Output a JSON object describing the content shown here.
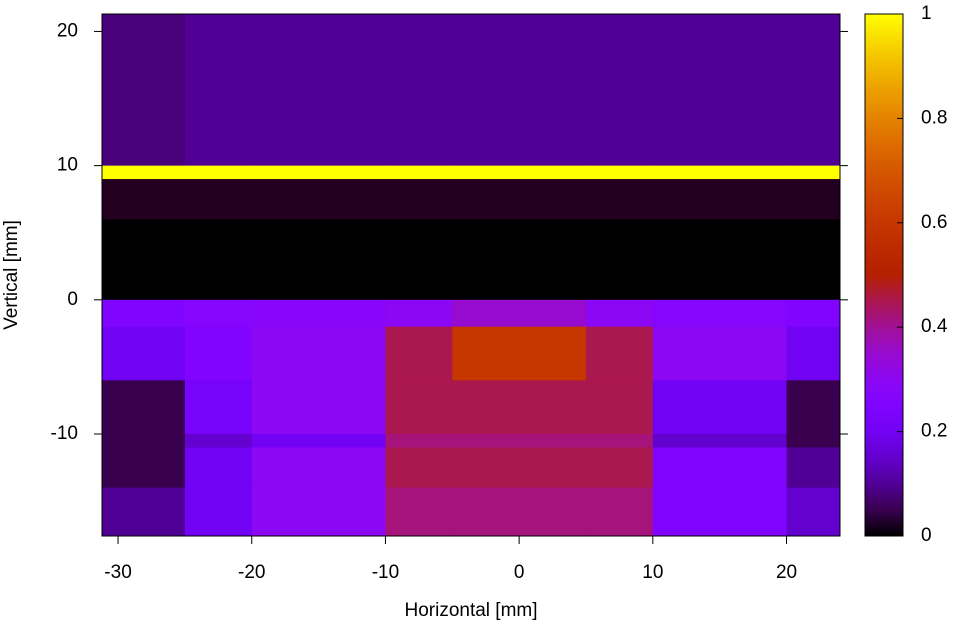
{
  "chart_data": {
    "type": "heatmap",
    "xlabel": "Horizontal [mm]",
    "ylabel": "Vertical [mm]",
    "xlim": [
      -31.2,
      24
    ],
    "ylim": [
      -17.6,
      21.3
    ],
    "xticks": [
      -30,
      -20,
      -10,
      0,
      10,
      20
    ],
    "yticks": [
      -10,
      0,
      10,
      20
    ],
    "xedges": [
      -31.2,
      -25,
      -20,
      -10,
      -5,
      5,
      10,
      20,
      24
    ],
    "yedges": [
      21.3,
      10,
      9,
      6,
      0,
      -2,
      -6,
      -10,
      -11,
      -14,
      -17.6
    ],
    "z": [
      [
        0.08,
        0.1,
        0.1,
        0.1,
        0.1,
        0.1,
        0.1,
        0.1
      ],
      [
        1,
        1,
        1,
        1,
        1,
        1,
        1,
        1
      ],
      [
        0.02,
        0.02,
        0.02,
        0.02,
        0.02,
        0.02,
        0.02,
        0.02
      ],
      [
        0,
        0,
        0,
        0,
        0,
        0,
        0,
        0
      ],
      [
        0.25,
        0.27,
        0.28,
        0.3,
        0.35,
        0.3,
        0.27,
        0.25
      ],
      [
        0.2,
        0.25,
        0.3,
        0.45,
        0.6,
        0.45,
        0.3,
        0.2
      ],
      [
        0.05,
        0.22,
        0.3,
        0.45,
        0.45,
        0.45,
        0.2,
        0.05
      ],
      [
        0.05,
        0.15,
        0.2,
        0.42,
        0.42,
        0.42,
        0.15,
        0.05
      ],
      [
        0.05,
        0.2,
        0.3,
        0.45,
        0.45,
        0.45,
        0.25,
        0.1
      ],
      [
        0.1,
        0.2,
        0.3,
        0.42,
        0.42,
        0.42,
        0.25,
        0.15
      ]
    ],
    "zlim": [
      0,
      1
    ],
    "zticks": [
      0,
      0.2,
      0.4,
      0.6,
      0.8,
      1
    ]
  }
}
